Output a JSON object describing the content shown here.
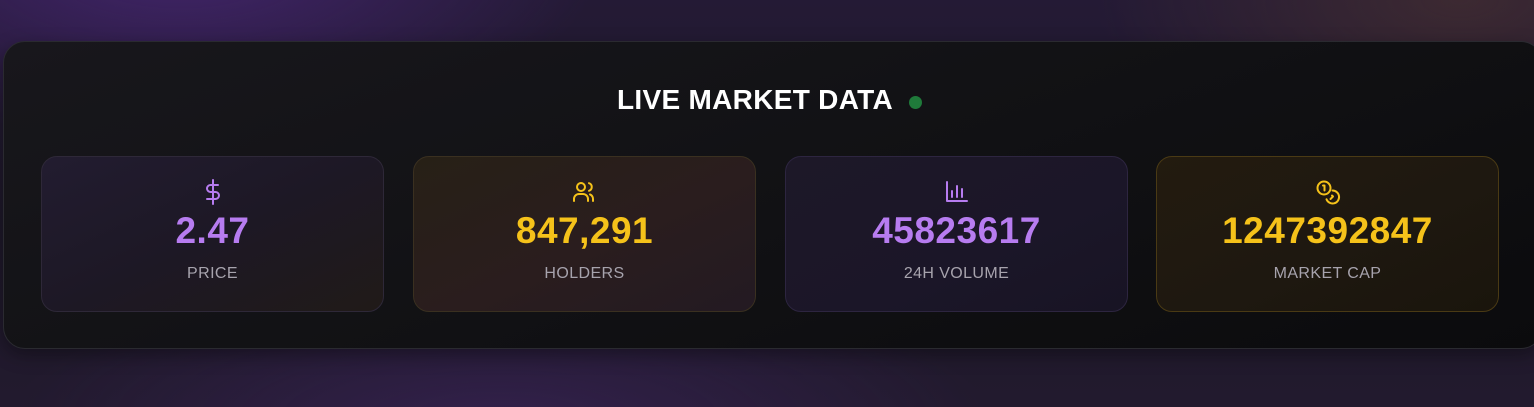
{
  "header": {
    "title": "LIVE MARKET DATA",
    "status_dot_color": "#1f7a3a"
  },
  "stats": [
    {
      "icon": "dollar-sign-icon",
      "value": "2.47",
      "label": "PRICE",
      "accent": "#b77cf0"
    },
    {
      "icon": "users-icon",
      "value": "847,291",
      "label": "HOLDERS",
      "accent": "#f5c21a"
    },
    {
      "icon": "bar-chart-icon",
      "value": "45823617",
      "label": "24H VOLUME",
      "accent": "#b77cf0"
    },
    {
      "icon": "coins-icon",
      "value": "1247392847",
      "label": "MARKET CAP",
      "accent": "#f5c21a"
    }
  ]
}
